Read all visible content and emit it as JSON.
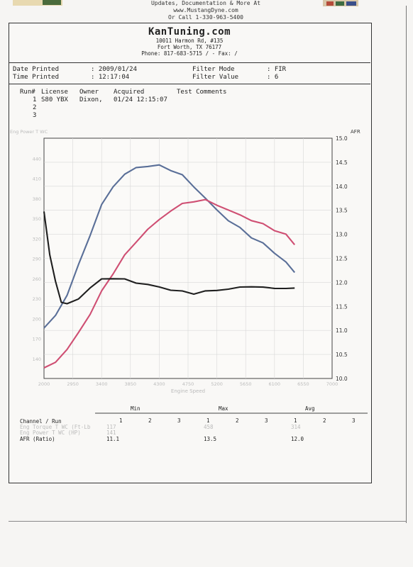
{
  "top": {
    "line1": "Updates, Documentation & More At",
    "line2": "www.MustangDyne.com",
    "line3": "Or Call 1-330-963-5400"
  },
  "header": {
    "company": "KanTuning.com",
    "address1": "10011 Harmon Rd, #135",
    "address2": "Fort Worth, TX  76177",
    "phone": "Phone: 817-683-5715 /  - Fax:  /"
  },
  "meta": {
    "date_label": "Date Printed",
    "date_value": ": 2009/01/24",
    "time_label": "Time Printed",
    "time_value": ": 12:17:04",
    "filter_mode_label": "Filter Mode",
    "filter_mode_value": ":  FIR",
    "filter_value_label": "Filter Value",
    "filter_value_value": ":  6"
  },
  "runs": {
    "headers": [
      "Run#",
      "License",
      "Owner",
      "Acquired",
      "Test Comments"
    ],
    "rows": [
      {
        "num": "1",
        "license": "S80 YBX",
        "owner": "Dixon,",
        "acquired": "01/24 12:15:07"
      },
      {
        "num": "2"
      },
      {
        "num": "3"
      }
    ]
  },
  "chart_data": {
    "type": "line",
    "xlabel": "Engine Speed",
    "ylabel_left": "Eng Power T WC",
    "ylabel_right": "AFR",
    "x_ticks": [
      "2000",
      "2950",
      "3400",
      "3850",
      "4300",
      "4750",
      "5200",
      "5650",
      "6100",
      "6550",
      "7000"
    ],
    "y_left_ticks": [
      "",
      "140",
      "170",
      "200",
      "230",
      "260",
      "290",
      "320",
      "350",
      "380",
      "410",
      "440",
      ""
    ],
    "y_right_ticks": [
      "10.0",
      "10.5",
      "11.0",
      "11.5",
      "12.0",
      "12.5",
      "13.0",
      "13.5",
      "14.0",
      "14.5",
      "15.0"
    ],
    "y_right_range": [
      10.0,
      15.0
    ],
    "series": [
      {
        "color": "#5a6f98",
        "x": [
          2000,
          2200,
          2400,
          2600,
          2800,
          3000,
          3200,
          3400,
          3600,
          3800,
          4000,
          4200,
          4400,
          4600,
          4800,
          5000,
          5200,
          5400,
          5600,
          5800,
          6000,
          6200,
          6350
        ],
        "y": [
          11.05,
          11.3,
          11.75,
          12.35,
          13.0,
          13.6,
          14.0,
          14.25,
          14.38,
          14.43,
          14.42,
          14.35,
          14.22,
          14.0,
          13.75,
          13.5,
          13.3,
          13.12,
          12.95,
          12.8,
          12.62,
          12.42,
          12.2
        ]
      },
      {
        "color": "#cf4f73",
        "x": [
          2000,
          2200,
          2400,
          2600,
          2800,
          3000,
          3200,
          3400,
          3600,
          3800,
          4000,
          4200,
          4400,
          4600,
          4800,
          5000,
          5200,
          5400,
          5600,
          5800,
          6000,
          6200,
          6350
        ],
        "y": [
          10.2,
          10.35,
          10.6,
          10.95,
          11.35,
          11.8,
          12.2,
          12.55,
          12.85,
          13.1,
          13.3,
          13.5,
          13.62,
          13.7,
          13.7,
          13.62,
          13.5,
          13.4,
          13.3,
          13.2,
          13.1,
          12.98,
          12.8
        ]
      },
      {
        "color": "#1f1f1f",
        "x": [
          2000,
          2100,
          2200,
          2300,
          2400,
          2600,
          2800,
          3000,
          3200,
          3400,
          3600,
          3800,
          4000,
          4200,
          4400,
          4600,
          4800,
          5000,
          5200,
          5400,
          5600,
          5800,
          6000,
          6200,
          6350
        ],
        "y": [
          13.45,
          12.6,
          12.0,
          11.6,
          11.55,
          11.65,
          11.9,
          12.05,
          12.1,
          12.05,
          12.0,
          11.95,
          11.9,
          11.85,
          11.8,
          11.78,
          11.8,
          11.85,
          11.85,
          11.9,
          11.92,
          11.88,
          11.9,
          11.85,
          11.9
        ]
      }
    ]
  },
  "stats": {
    "min_label": "Min",
    "max_label": "Max",
    "avg_label": "Avg",
    "channel_label": "Channel / Run",
    "run_cols": [
      "1",
      "2",
      "3"
    ],
    "row1_label": "Eng Torque T WC (Ft-Lb",
    "row1_min": "117",
    "row1_max": "458",
    "row1_avg": "314",
    "row2_label": "Eng Power T WC (HP)",
    "row2_min": "141",
    "row2_max": "",
    "row2_avg": "",
    "afr_label": "AFR (Ratio)",
    "afr_min": "11.1",
    "afr_max": "13.5",
    "afr_avg": "12.0"
  },
  "colors": {
    "blue_series": "#5a6f98",
    "red_series": "#cf4f73",
    "black_series": "#1f1f1f"
  }
}
